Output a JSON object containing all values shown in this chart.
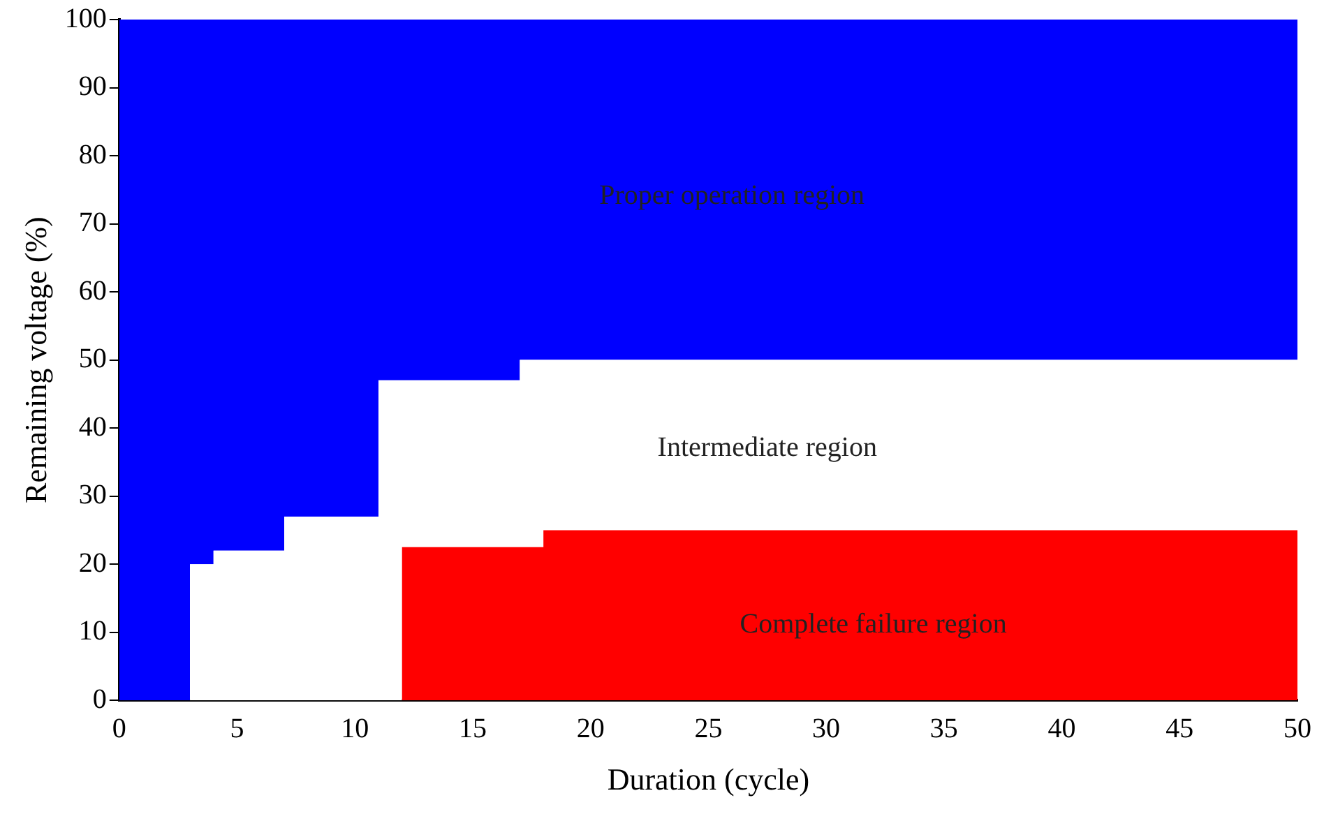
{
  "chart_data": {
    "type": "area",
    "stacked": true,
    "xlabel": "Duration (cycle)",
    "ylabel": "Remaining voltage (%)",
    "x": [
      0,
      3,
      3,
      4,
      4,
      7,
      7,
      11,
      11,
      12,
      12,
      17,
      17,
      18,
      18,
      50
    ],
    "series": [
      {
        "color": "#ff0000",
        "values": [
          0,
          0,
          0,
          0,
          0,
          0,
          0,
          0,
          0,
          0,
          22.5,
          22.5,
          22.5,
          22.5,
          25,
          25
        ]
      },
      {
        "color": "#ffffff",
        "values": [
          0,
          0,
          20,
          20,
          22,
          22,
          27,
          27,
          47,
          47,
          24.5,
          24.5,
          27.5,
          27.5,
          25,
          25
        ]
      },
      {
        "color": "#0000ff",
        "values": [
          100,
          100,
          80,
          80,
          78,
          78,
          73,
          73,
          53,
          53,
          53,
          53,
          50,
          50,
          50,
          50
        ]
      }
    ],
    "xlim": [
      0,
      50
    ],
    "xticks": [
      0,
      5,
      10,
      15,
      20,
      25,
      30,
      35,
      40,
      45,
      50
    ],
    "ylim": [
      0,
      100
    ],
    "yticks": [
      0,
      10,
      20,
      30,
      40,
      50,
      60,
      70,
      80,
      90,
      100
    ],
    "grid": false,
    "legend": false,
    "annotations": [
      "Proper operation region",
      "Intermediate region",
      "Complete failure region"
    ]
  }
}
